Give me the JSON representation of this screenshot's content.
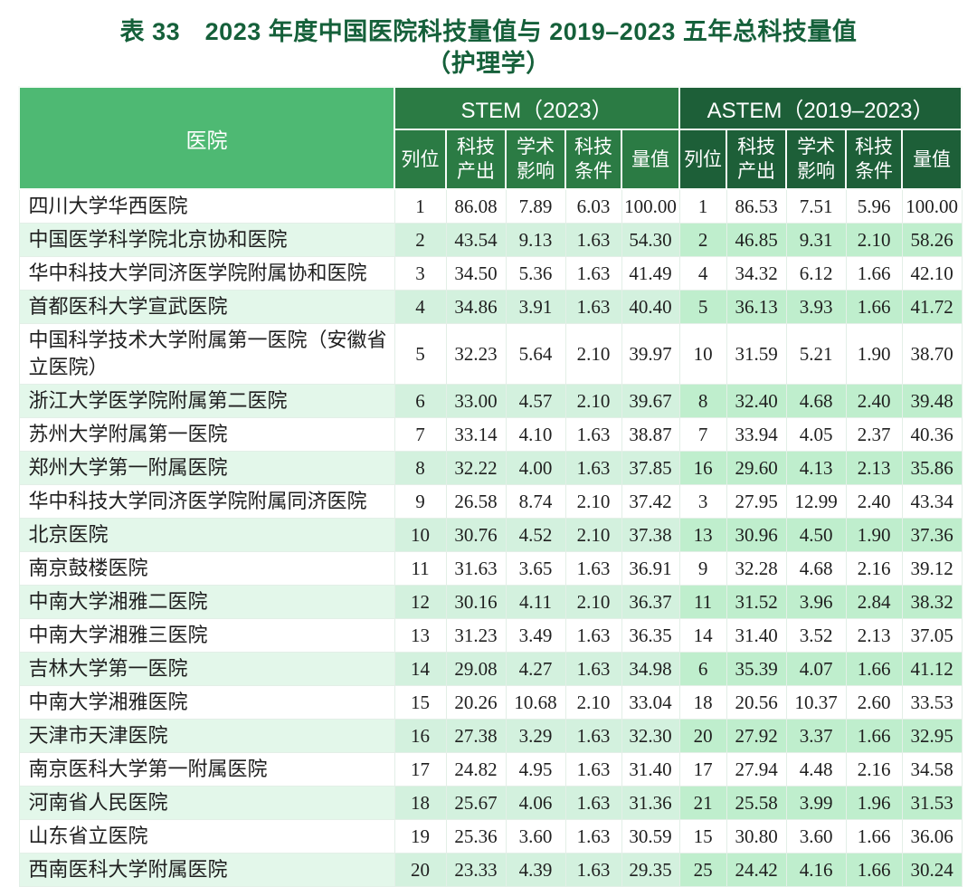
{
  "title": {
    "line1": "表 33　2023 年度中国医院科技量值与 2019–2023 五年总科技量值",
    "line2": "（护理学）"
  },
  "table": {
    "hospital_header": "医院",
    "group_headers": [
      {
        "label": "STEM（2023）"
      },
      {
        "label": "ASTEM（2019–2023）"
      }
    ],
    "sub_headers": [
      "列位",
      "科技\n产出",
      "学术\n影响",
      "科技\n条件",
      "量值"
    ],
    "rows": [
      {
        "hospital": "四川大学华西医院",
        "stem": [
          "1",
          "86.08",
          "7.89",
          "6.03",
          "100.00"
        ],
        "astem": [
          "1",
          "86.53",
          "7.51",
          "5.96",
          "100.00"
        ]
      },
      {
        "hospital": "中国医学科学院北京协和医院",
        "stem": [
          "2",
          "43.54",
          "9.13",
          "1.63",
          "54.30"
        ],
        "astem": [
          "2",
          "46.85",
          "9.31",
          "2.10",
          "58.26"
        ]
      },
      {
        "hospital": "华中科技大学同济医学院附属协和医院",
        "stem": [
          "3",
          "34.50",
          "5.36",
          "1.63",
          "41.49"
        ],
        "astem": [
          "4",
          "34.32",
          "6.12",
          "1.66",
          "42.10"
        ]
      },
      {
        "hospital": "首都医科大学宣武医院",
        "stem": [
          "4",
          "34.86",
          "3.91",
          "1.63",
          "40.40"
        ],
        "astem": [
          "5",
          "36.13",
          "3.93",
          "1.66",
          "41.72"
        ]
      },
      {
        "hospital": "中国科学技术大学附属第一医院（安徽省立医院）",
        "stem": [
          "5",
          "32.23",
          "5.64",
          "2.10",
          "39.97"
        ],
        "astem": [
          "10",
          "31.59",
          "5.21",
          "1.90",
          "38.70"
        ]
      },
      {
        "hospital": "浙江大学医学院附属第二医院",
        "stem": [
          "6",
          "33.00",
          "4.57",
          "2.10",
          "39.67"
        ],
        "astem": [
          "8",
          "32.40",
          "4.68",
          "2.40",
          "39.48"
        ]
      },
      {
        "hospital": "苏州大学附属第一医院",
        "stem": [
          "7",
          "33.14",
          "4.10",
          "1.63",
          "38.87"
        ],
        "astem": [
          "7",
          "33.94",
          "4.05",
          "2.37",
          "40.36"
        ]
      },
      {
        "hospital": "郑州大学第一附属医院",
        "stem": [
          "8",
          "32.22",
          "4.00",
          "1.63",
          "37.85"
        ],
        "astem": [
          "16",
          "29.60",
          "4.13",
          "2.13",
          "35.86"
        ]
      },
      {
        "hospital": "华中科技大学同济医学院附属同济医院",
        "stem": [
          "9",
          "26.58",
          "8.74",
          "2.10",
          "37.42"
        ],
        "astem": [
          "3",
          "27.95",
          "12.99",
          "2.40",
          "43.34"
        ]
      },
      {
        "hospital": "北京医院",
        "stem": [
          "10",
          "30.76",
          "4.52",
          "2.10",
          "37.38"
        ],
        "astem": [
          "13",
          "30.96",
          "4.50",
          "1.90",
          "37.36"
        ]
      },
      {
        "hospital": "南京鼓楼医院",
        "stem": [
          "11",
          "31.63",
          "3.65",
          "1.63",
          "36.91"
        ],
        "astem": [
          "9",
          "32.28",
          "4.68",
          "2.16",
          "39.12"
        ]
      },
      {
        "hospital": "中南大学湘雅二医院",
        "stem": [
          "12",
          "30.16",
          "4.11",
          "2.10",
          "36.37"
        ],
        "astem": [
          "11",
          "31.52",
          "3.96",
          "2.84",
          "38.32"
        ]
      },
      {
        "hospital": "中南大学湘雅三医院",
        "stem": [
          "13",
          "31.23",
          "3.49",
          "1.63",
          "36.35"
        ],
        "astem": [
          "14",
          "31.40",
          "3.52",
          "2.13",
          "37.05"
        ]
      },
      {
        "hospital": "吉林大学第一医院",
        "stem": [
          "14",
          "29.08",
          "4.27",
          "1.63",
          "34.98"
        ],
        "astem": [
          "6",
          "35.39",
          "4.07",
          "1.66",
          "41.12"
        ]
      },
      {
        "hospital": "中南大学湘雅医院",
        "stem": [
          "15",
          "20.26",
          "10.68",
          "2.10",
          "33.04"
        ],
        "astem": [
          "18",
          "20.56",
          "10.37",
          "2.60",
          "33.53"
        ]
      },
      {
        "hospital": "天津市天津医院",
        "stem": [
          "16",
          "27.38",
          "3.29",
          "1.63",
          "32.30"
        ],
        "astem": [
          "20",
          "27.92",
          "3.37",
          "1.66",
          "32.95"
        ]
      },
      {
        "hospital": "南京医科大学第一附属医院",
        "stem": [
          "17",
          "24.82",
          "4.95",
          "1.63",
          "31.40"
        ],
        "astem": [
          "17",
          "27.94",
          "4.48",
          "2.16",
          "34.58"
        ]
      },
      {
        "hospital": "河南省人民医院",
        "stem": [
          "18",
          "25.67",
          "4.06",
          "1.63",
          "31.36"
        ],
        "astem": [
          "21",
          "25.58",
          "3.99",
          "1.96",
          "31.53"
        ]
      },
      {
        "hospital": "山东省立医院",
        "stem": [
          "19",
          "25.36",
          "3.60",
          "1.63",
          "30.59"
        ],
        "astem": [
          "15",
          "30.80",
          "3.60",
          "1.66",
          "36.06"
        ]
      },
      {
        "hospital": "西南医科大学附属医院",
        "stem": [
          "20",
          "23.33",
          "4.39",
          "1.63",
          "29.35"
        ],
        "astem": [
          "25",
          "24.42",
          "4.16",
          "1.66",
          "30.24"
        ]
      }
    ]
  },
  "colors": {
    "title": "#15603a",
    "hospital_header_bg": "#4eb973",
    "stem_header_bg": "#2b7b44",
    "astem_header_bg": "#1d5f38",
    "stripe_hospital": "#e3f7ea",
    "stripe_stem": "#d3f1de",
    "stripe_astem": "#bfeecd",
    "grid_line": "#e3efe7",
    "text": "#1f1f1f"
  }
}
